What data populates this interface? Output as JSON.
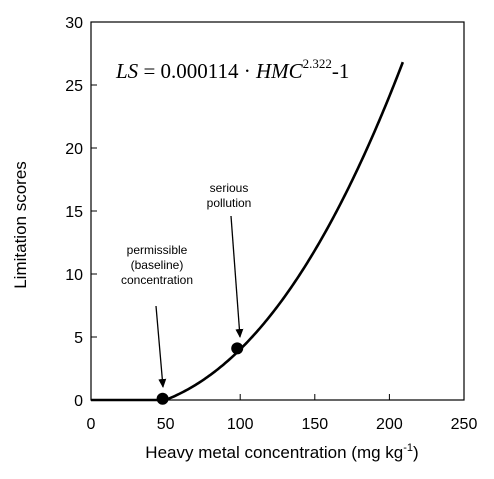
{
  "chart_data": {
    "type": "line",
    "xlabel": "Heavy metal concentration (mg kg",
    "xlabel_sup": "-1",
    "xlabel_tail": ")",
    "ylabel": "Limitation scores",
    "xlim": [
      0,
      250
    ],
    "ylim": [
      0,
      30
    ],
    "xticks": [
      0,
      50,
      100,
      150,
      200,
      250
    ],
    "yticks": [
      0,
      5,
      10,
      15,
      20,
      25,
      30
    ],
    "grid": false,
    "equation": {
      "lhs": "LS",
      "eq": " = 0.000114 · ",
      "var": "HMC",
      "exponent": "2.322",
      "tail": "-1"
    },
    "curve": {
      "coefficient": 0.000114,
      "exponent": 2.322,
      "offset": -1,
      "x_start": 0,
      "x_end": 209,
      "points": [
        {
          "x": 0,
          "y": 0
        },
        {
          "x": 30,
          "y": 0
        },
        {
          "x": 48,
          "y": 0.1
        },
        {
          "x": 60,
          "y": 1.0
        },
        {
          "x": 80,
          "y": 2.6
        },
        {
          "x": 98,
          "y": 4.1
        },
        {
          "x": 120,
          "y": 6.5
        },
        {
          "x": 140,
          "y": 9.5
        },
        {
          "x": 160,
          "y": 13.3
        },
        {
          "x": 180,
          "y": 18.1
        },
        {
          "x": 200,
          "y": 23.8
        },
        {
          "x": 209,
          "y": 27.0
        }
      ]
    },
    "markers": [
      {
        "name": "permissible",
        "x": 48,
        "y": 0.1
      },
      {
        "name": "serious",
        "x": 98,
        "y": 4.1
      }
    ],
    "annotations": [
      {
        "name": "permissible",
        "lines": [
          "permissible",
          "(baseline)",
          "concentration"
        ],
        "x": 48,
        "y": 0.1
      },
      {
        "name": "serious",
        "lines": [
          "serious",
          "pollution"
        ],
        "x": 98,
        "y": 4.1
      }
    ]
  }
}
